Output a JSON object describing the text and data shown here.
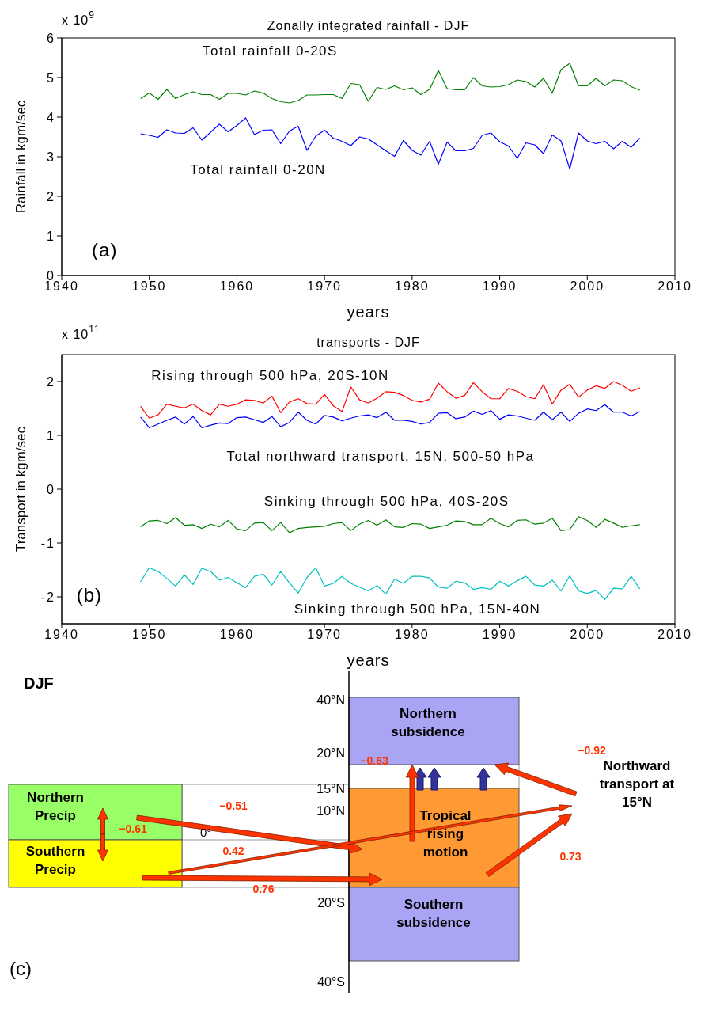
{
  "chart_data": [
    {
      "type": "line",
      "title": "Zonally integrated rainfall - DJF",
      "xlabel": "years",
      "ylabel": "Rainfall in kgm/sec",
      "annotations": [
        "x 10$^{9}$",
        "(a)"
      ],
      "x": [
        1949,
        1950,
        1951,
        1952,
        1953,
        1954,
        1955,
        1956,
        1957,
        1958,
        1959,
        1960,
        1961,
        1962,
        1963,
        1964,
        1965,
        1966,
        1967,
        1968,
        1969,
        1970,
        1971,
        1972,
        1973,
        1974,
        1975,
        1976,
        1977,
        1978,
        1979,
        1980,
        1981,
        1982,
        1983,
        1984,
        1985,
        1986,
        1987,
        1988,
        1989,
        1990,
        1991,
        1992,
        1993,
        1994,
        1995,
        1996,
        1997,
        1998,
        1999,
        2000,
        2001,
        2002,
        2003,
        2004,
        2005,
        2006
      ],
      "series": [
        {
          "name": "Total rainfall 0-20S",
          "color": "#008000",
          "values": [
            4.47,
            4.61,
            4.45,
            4.7,
            4.47,
            4.57,
            4.64,
            4.57,
            4.57,
            4.45,
            4.6,
            4.6,
            4.56,
            4.66,
            4.61,
            4.47,
            4.39,
            4.36,
            4.42,
            4.56,
            4.56,
            4.57,
            4.57,
            4.47,
            4.85,
            4.82,
            4.4,
            4.75,
            4.7,
            4.79,
            4.69,
            4.74,
            4.57,
            4.7,
            5.18,
            4.72,
            4.69,
            4.69,
            5.0,
            4.79,
            4.76,
            4.77,
            4.82,
            4.94,
            4.9,
            4.76,
            4.98,
            4.61,
            5.2,
            5.36,
            4.79,
            4.79,
            4.98,
            4.79,
            4.94,
            4.92,
            4.77,
            4.68
          ]
        },
        {
          "name": "Total rainfall 0-20N",
          "color": "#0000ff",
          "values": [
            3.58,
            3.54,
            3.49,
            3.68,
            3.6,
            3.59,
            3.73,
            3.42,
            3.62,
            3.82,
            3.63,
            3.79,
            3.98,
            3.56,
            3.67,
            3.68,
            3.33,
            3.65,
            3.77,
            3.16,
            3.52,
            3.67,
            3.47,
            3.39,
            3.28,
            3.5,
            3.45,
            3.3,
            3.15,
            3.01,
            3.41,
            3.16,
            3.04,
            3.39,
            2.81,
            3.37,
            3.15,
            3.15,
            3.21,
            3.54,
            3.6,
            3.38,
            3.27,
            2.96,
            3.35,
            3.3,
            3.08,
            3.55,
            3.4,
            2.69,
            3.6,
            3.4,
            3.33,
            3.39,
            3.2,
            3.39,
            3.24,
            3.47
          ]
        }
      ],
      "xlim": [
        1940,
        2010
      ],
      "xticks": [
        1940,
        1950,
        1960,
        1970,
        1980,
        1990,
        2000,
        2010
      ],
      "ylim": [
        0,
        6
      ],
      "yticks": [
        0,
        1,
        2,
        3,
        4,
        5,
        6
      ],
      "line_style": "solid",
      "marker": "none"
    },
    {
      "type": "line",
      "title": "transports - DJF",
      "xlabel": "years",
      "ylabel": "Transport in kgm/sec",
      "annotations": [
        "x 10$^{11}$",
        "(b)"
      ],
      "x": [
        1949,
        1950,
        1951,
        1952,
        1953,
        1954,
        1955,
        1956,
        1957,
        1958,
        1959,
        1960,
        1961,
        1962,
        1963,
        1964,
        1965,
        1966,
        1967,
        1968,
        1969,
        1970,
        1971,
        1972,
        1973,
        1974,
        1975,
        1976,
        1977,
        1978,
        1979,
        1980,
        1981,
        1982,
        1983,
        1984,
        1985,
        1986,
        1987,
        1988,
        1989,
        1990,
        1991,
        1992,
        1993,
        1994,
        1995,
        1996,
        1997,
        1998,
        1999,
        2000,
        2001,
        2002,
        2003,
        2004,
        2005,
        2006
      ],
      "series": [
        {
          "name": "Rising through 500 hPa, 20S-10N",
          "color": "#ff0000",
          "values": [
            1.54,
            1.32,
            1.38,
            1.58,
            1.54,
            1.51,
            1.58,
            1.46,
            1.38,
            1.58,
            1.54,
            1.58,
            1.66,
            1.65,
            1.6,
            1.73,
            1.42,
            1.62,
            1.68,
            1.59,
            1.58,
            1.76,
            1.55,
            1.44,
            1.9,
            1.66,
            1.6,
            1.69,
            1.81,
            1.8,
            1.74,
            1.65,
            1.62,
            1.67,
            1.97,
            1.81,
            1.69,
            1.74,
            1.98,
            1.81,
            1.68,
            1.68,
            1.87,
            1.82,
            1.72,
            1.68,
            1.94,
            1.58,
            1.84,
            1.95,
            1.71,
            1.84,
            1.92,
            1.87,
            2.0,
            1.93,
            1.82,
            1.88
          ]
        },
        {
          "name": "Total northward transport, 15N, 500-50 hPa",
          "color": "#0000ff",
          "values": [
            1.34,
            1.14,
            1.21,
            1.28,
            1.34,
            1.21,
            1.35,
            1.14,
            1.19,
            1.23,
            1.22,
            1.33,
            1.34,
            1.29,
            1.24,
            1.35,
            1.16,
            1.24,
            1.43,
            1.28,
            1.21,
            1.37,
            1.34,
            1.27,
            1.32,
            1.36,
            1.38,
            1.33,
            1.43,
            1.28,
            1.28,
            1.26,
            1.21,
            1.24,
            1.41,
            1.42,
            1.31,
            1.34,
            1.45,
            1.39,
            1.46,
            1.3,
            1.38,
            1.36,
            1.32,
            1.28,
            1.43,
            1.29,
            1.43,
            1.26,
            1.41,
            1.49,
            1.46,
            1.57,
            1.43,
            1.43,
            1.36,
            1.44
          ]
        },
        {
          "name": "Sinking through 500 hPa, 40S-20S",
          "color": "#008000",
          "values": [
            -0.7,
            -0.59,
            -0.58,
            -0.64,
            -0.53,
            -0.67,
            -0.66,
            -0.73,
            -0.65,
            -0.7,
            -0.58,
            -0.74,
            -0.77,
            -0.63,
            -0.62,
            -0.77,
            -0.62,
            -0.81,
            -0.73,
            -0.71,
            -0.7,
            -0.69,
            -0.64,
            -0.62,
            -0.77,
            -0.65,
            -0.58,
            -0.67,
            -0.57,
            -0.7,
            -0.71,
            -0.64,
            -0.65,
            -0.73,
            -0.7,
            -0.67,
            -0.59,
            -0.6,
            -0.66,
            -0.66,
            -0.54,
            -0.64,
            -0.7,
            -0.58,
            -0.57,
            -0.65,
            -0.63,
            -0.54,
            -0.77,
            -0.75,
            -0.51,
            -0.58,
            -0.71,
            -0.56,
            -0.63,
            -0.71,
            -0.68,
            -0.66
          ]
        },
        {
          "name": "Sinking through 500 hPa, 15N-40N",
          "color": "#00bfbf",
          "values": [
            -1.72,
            -1.46,
            -1.53,
            -1.66,
            -1.8,
            -1.59,
            -1.77,
            -1.47,
            -1.53,
            -1.69,
            -1.64,
            -1.74,
            -1.83,
            -1.62,
            -1.58,
            -1.78,
            -1.53,
            -1.74,
            -1.93,
            -1.64,
            -1.46,
            -1.8,
            -1.75,
            -1.62,
            -1.75,
            -1.82,
            -1.89,
            -1.79,
            -1.95,
            -1.67,
            -1.75,
            -1.62,
            -1.62,
            -1.65,
            -1.82,
            -1.84,
            -1.71,
            -1.74,
            -1.86,
            -1.83,
            -1.86,
            -1.71,
            -1.8,
            -1.7,
            -1.62,
            -1.78,
            -1.8,
            -1.69,
            -1.89,
            -1.61,
            -1.89,
            -1.94,
            -1.88,
            -2.05,
            -1.84,
            -1.85,
            -1.62,
            -1.85
          ]
        }
      ],
      "xlim": [
        1940,
        2010
      ],
      "xticks": [
        1940,
        1950,
        1960,
        1970,
        1980,
        1990,
        2000,
        2010
      ],
      "ylim": [
        -2.5,
        2.5
      ],
      "yticks": [
        -2,
        -1,
        0,
        1,
        2
      ],
      "line_style": "solid",
      "marker": "none"
    },
    {
      "type": "other",
      "title": "DJF",
      "annotations": [
        "40°N",
        "20°N",
        "15°N",
        "10°N",
        "0°",
        "20°S",
        "40°S",
        "Northern subsidence",
        "Northern Precip",
        "Southern Precip",
        "Tropical rising motion",
        "Southern subsidence",
        "Northward transport at 15°N",
        "−0.92",
        "−0.63",
        "−0.51",
        "−0.61",
        "0.42",
        "0.76",
        "0.73",
        "(c)"
      ]
    }
  ]
}
